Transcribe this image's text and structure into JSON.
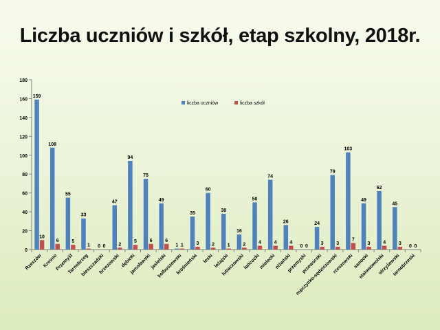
{
  "slide": {
    "title": "Liczba uczniów i szkół, etap szkolny, 2018r."
  },
  "colors": {
    "series1": "#4f81bd",
    "series2": "#c0504d",
    "axis": "#808080",
    "text": "#000000"
  },
  "chart_data": {
    "type": "bar",
    "title": "",
    "xlabel": "",
    "ylabel": "",
    "ylim": [
      0,
      180
    ],
    "yticks": [
      0,
      20,
      40,
      60,
      80,
      100,
      120,
      140,
      160,
      180
    ],
    "grid": false,
    "legend_position": "top-center",
    "categories": [
      "Rzeszów",
      "Krosno",
      "Przemyśl",
      "Tarnobrzeg",
      "bieszczadzki",
      "brzozowski",
      "dębicki",
      "jarosławski",
      "jasielski",
      "kolbuszowski",
      "krośnieński",
      "leski",
      "leżajski",
      "lubaczowski",
      "łańcucki",
      "mielecki",
      "niżański",
      "przemyski",
      "przeworski",
      "ropczycko-sędziszowski",
      "rzeszowski",
      "sanocki",
      "stalowowolski",
      "strzyżowski",
      "tarnobrzeski"
    ],
    "series": [
      {
        "name": "liczba uczniów",
        "color": "#4f81bd",
        "values": [
          159,
          108,
          55,
          33,
          0,
          47,
          94,
          75,
          49,
          1,
          35,
          60,
          38,
          16,
          50,
          74,
          26,
          0,
          24,
          79,
          103,
          49,
          62,
          45,
          0
        ]
      },
      {
        "name": "liczba szkół",
        "color": "#c0504d",
        "values": [
          10,
          6,
          5,
          1,
          0,
          2,
          5,
          6,
          6,
          1,
          3,
          2,
          1,
          2,
          4,
          4,
          4,
          0,
          3,
          3,
          7,
          3,
          4,
          3,
          0
        ]
      }
    ]
  }
}
